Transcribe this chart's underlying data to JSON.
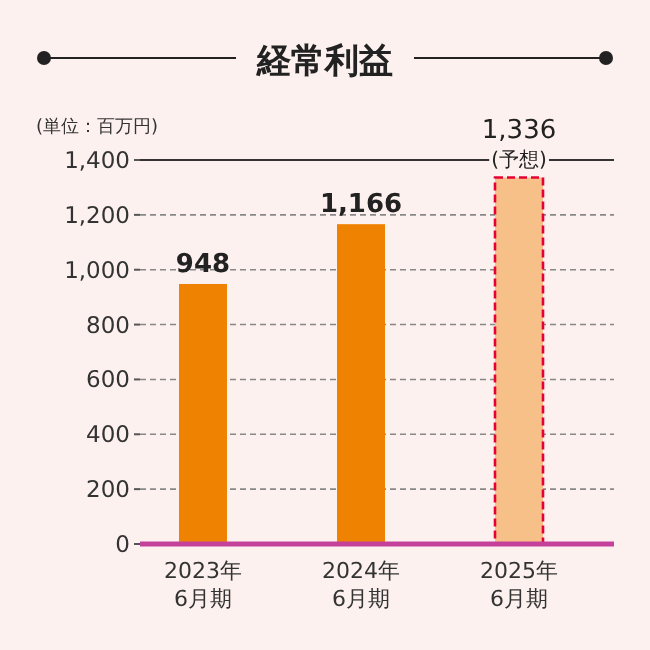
{
  "chart_data": {
    "type": "bar",
    "title": "経常利益",
    "ylabel": "(単位：百万円)",
    "categories": [
      "2023年\n6月期",
      "2024年\n6月期",
      "2025年\n6月期"
    ],
    "stacked": true,
    "series": [
      {
        "color": "#ef8200",
        "values": [
          948,
          1166,
          null
        ],
        "value_labels": [
          "948",
          "1,166",
          null
        ],
        "line_style": "solid"
      },
      {
        "color": "#f7c089",
        "values": [
          null,
          null,
          1336
        ],
        "value_labels": [
          null,
          null,
          "1,336"
        ],
        "line_style": "dashed"
      }
    ],
    "annotations": [
      {
        "text": "(予想)",
        "x": "2025年\n6月期",
        "y": 1336
      }
    ],
    "ylim": [
      0,
      1400
    ],
    "yticks": [
      0,
      200,
      400,
      600,
      800,
      {
        "value": 1000,
        "label": "1,000"
      },
      {
        "value": 1200,
        "label": "1,200"
      },
      {
        "value": 1400,
        "label": "1,400"
      }
    ],
    "grid": "y"
  }
}
